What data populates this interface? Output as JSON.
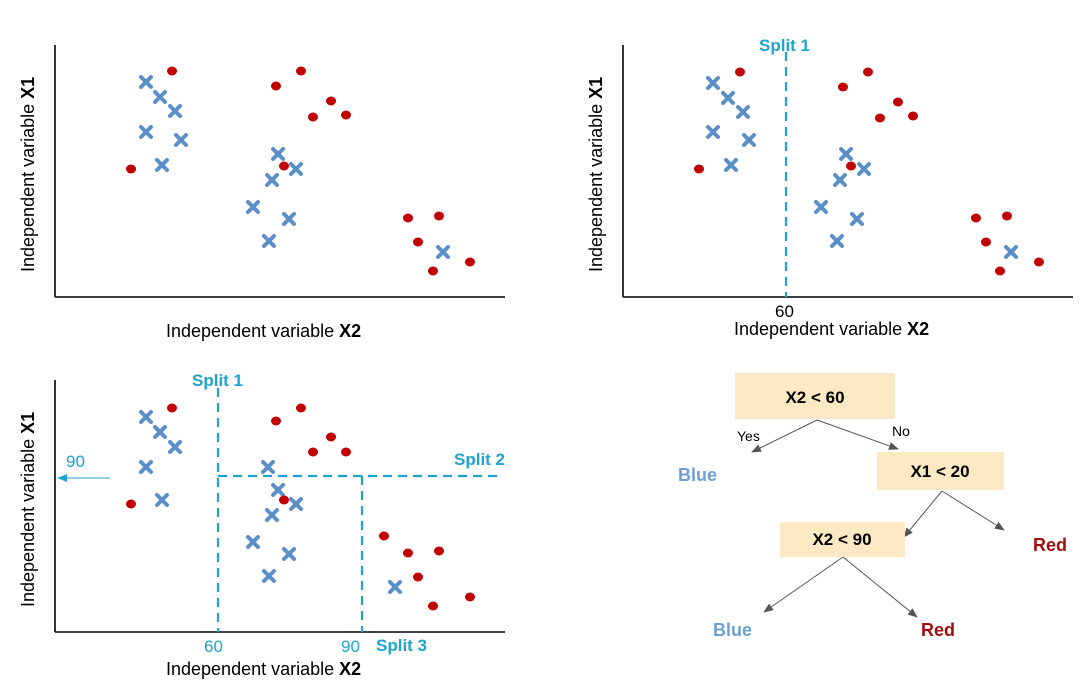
{
  "axes": {
    "ylabel_prefix": "Independent variable ",
    "ylabel_var": "X1",
    "xlabel_prefix": "Independent variable ",
    "xlabel_var": "X2"
  },
  "splits": {
    "split1": "Split 1",
    "split2": "Split 2",
    "split3": "Split 3",
    "tick_60": "60",
    "tick_90_x": "90",
    "tick_90_y": "90"
  },
  "tree": {
    "root": "X2 < 60",
    "yes": "Yes",
    "no": "No",
    "node2": "X1 < 20",
    "node3": "X2 < 90",
    "leaf_blue_1": "Blue",
    "leaf_red_1": "Red",
    "leaf_blue_2": "Blue",
    "leaf_red_2": "Red"
  },
  "colors": {
    "blue_point": "#5a8fc7",
    "red_point": "#c00000",
    "split_line": "#1fa3cf",
    "box_fill": "#fbe9c4",
    "leaf_blue": "#6ea1cf",
    "leaf_red": "#a01010",
    "axis": "#000000",
    "edge": "#555555"
  },
  "icons": {
    "blue_marker": "x-cross-marker",
    "red_marker": "filled-circle-marker"
  }
}
